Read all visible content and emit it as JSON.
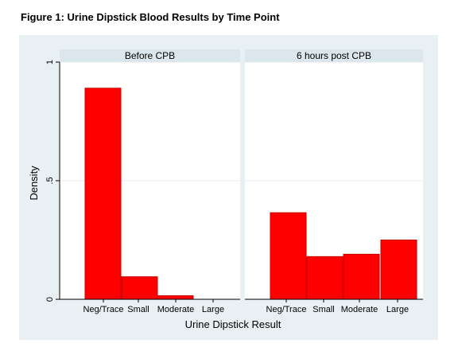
{
  "figure_title": "Figure 1: Urine Dipstick Blood Results by Time Point",
  "colors": {
    "outer_background": "#e9f0f3",
    "panel_header": "#dbe7ec",
    "bar_fill": "#ff0000",
    "bar_edge": "#c80000",
    "gridline": "#e8eef1"
  },
  "chart_data": {
    "type": "bar",
    "xlabel": "Urine Dipstick Result",
    "ylabel": "Density",
    "ylim": [
      0,
      1
    ],
    "yticks": [
      0,
      0.5,
      1
    ],
    "ytick_labels": [
      "0",
      ".5",
      "1"
    ],
    "grid": true,
    "categories": [
      "Neg/Trace",
      "Small",
      "Moderate",
      "Large"
    ],
    "panels": [
      {
        "title": "Before CPB",
        "values": [
          0.89,
          0.095,
          0.015,
          0
        ]
      },
      {
        "title": "6 hours post CPB",
        "values": [
          0.365,
          0.18,
          0.19,
          0.25
        ]
      }
    ]
  }
}
